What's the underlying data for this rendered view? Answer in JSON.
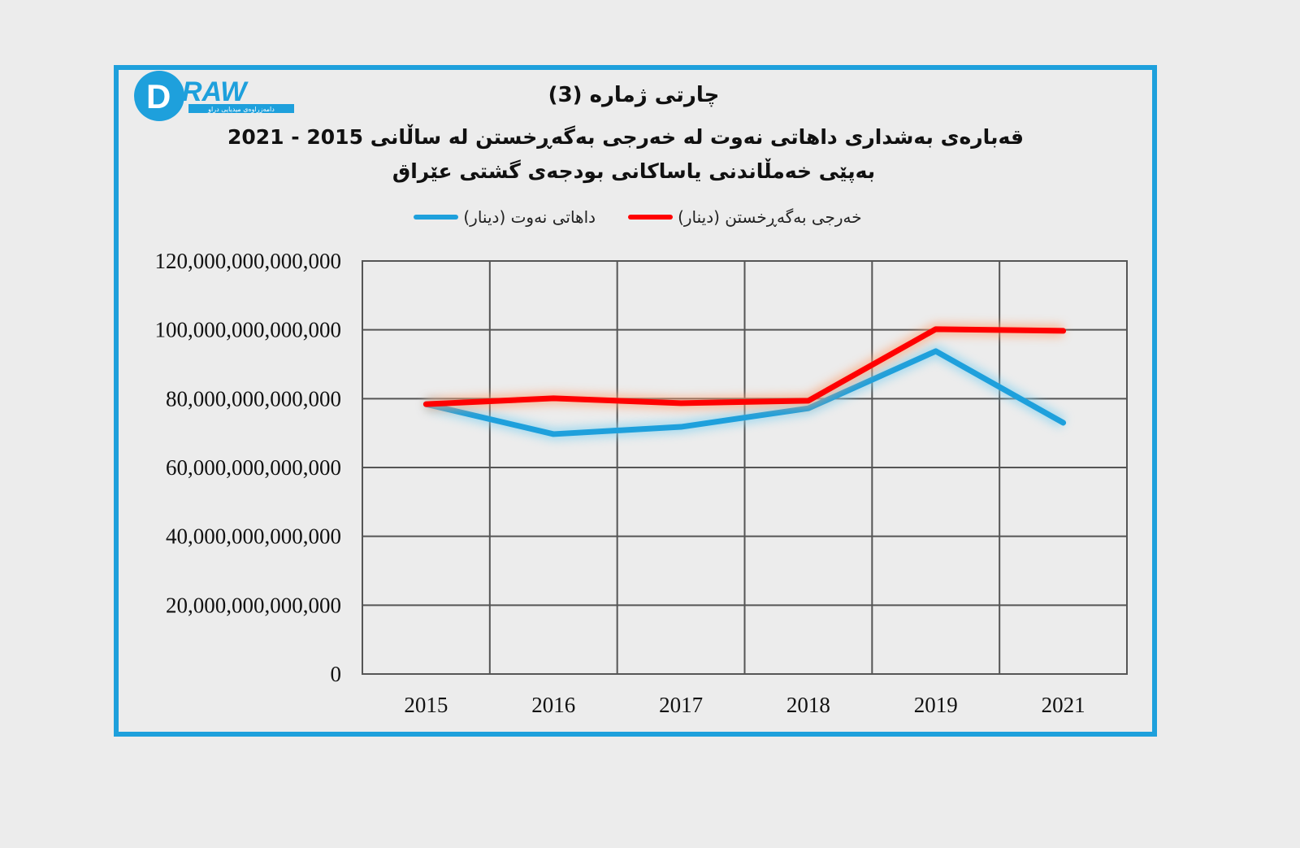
{
  "logo": {
    "text": "DRAW",
    "tagline": "دامەزراوەی میدیایی دراو"
  },
  "chart_data": {
    "type": "line",
    "title": "چارتی ژمارە (3)",
    "subtitle_line1": "قەبارەی بەشداری داهاتی نەوت لە خەرجی بەگەڕخستن لە ساڵانی 2015 - 2021",
    "subtitle_line2": "بەپێی خەمڵاندنی یاساکانی بودجەی گشتی عێراق",
    "categories": [
      "2015",
      "2016",
      "2017",
      "2018",
      "2019",
      "2021"
    ],
    "ylim": [
      0,
      120000000000000
    ],
    "yticks": [
      "0",
      "20,000,000,000,000",
      "40,000,000,000,000",
      "60,000,000,000,000",
      "80,000,000,000,000",
      "100,000,000,000,000",
      "120,000,000,000,000"
    ],
    "ytick_values": [
      0,
      20000000000000,
      40000000000000,
      60000000000000,
      80000000000000,
      100000000000000,
      120000000000000
    ],
    "grid": true,
    "legend_position": "top",
    "series": [
      {
        "name": "خەرجی بەگەڕخستن (دینار)",
        "color": "#ff0000",
        "values": [
          78400000000000,
          80100000000000,
          78700000000000,
          79400000000000,
          100200000000000,
          99700000000000
        ]
      },
      {
        "name": "داهاتی نەوت (دینار)",
        "color": "#1ea0dc",
        "values": [
          78400000000000,
          69700000000000,
          71800000000000,
          77200000000000,
          93800000000000,
          73000000000000
        ]
      }
    ]
  }
}
